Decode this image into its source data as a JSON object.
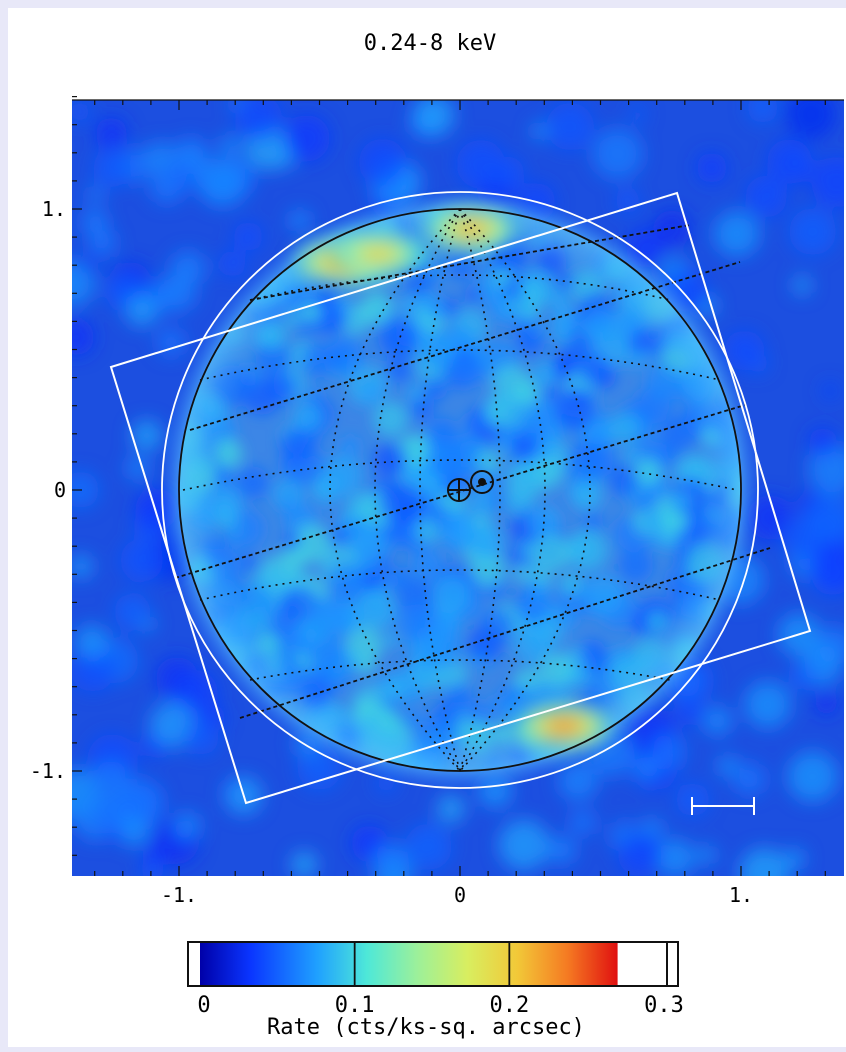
{
  "chart_data": {
    "type": "heatmap",
    "title": "0.24-8 keV",
    "xlabel": "",
    "ylabel": "",
    "xlim": [
      -1.4,
      1.36
    ],
    "ylim": [
      -1.37,
      1.41
    ],
    "x_ticks": [
      {
        "v": -1,
        "label": "-1."
      },
      {
        "v": 0,
        "label": "0"
      },
      {
        "v": 1,
        "label": "1."
      }
    ],
    "y_ticks": [
      {
        "v": 1,
        "label": "1."
      },
      {
        "v": 0,
        "label": "0"
      },
      {
        "v": -1,
        "label": "-1."
      }
    ],
    "colormap": "jet",
    "background_color": "#1c4fe0",
    "disk": {
      "center": [
        0,
        0
      ],
      "radius": 0.985
    },
    "bright_regions": [
      {
        "center": [
          -0.42,
          0.81
        ],
        "rate": 0.25
      },
      {
        "center": [
          -0.29,
          0.84
        ],
        "rate": 0.22
      },
      {
        "center": [
          0.04,
          0.93
        ],
        "rate": 0.24
      },
      {
        "center": [
          0.37,
          -0.84
        ],
        "rate": 0.26
      }
    ],
    "colorbar": {
      "label": "Rate (cts/ks-sq. arcsec)",
      "range": [
        0,
        0.3
      ],
      "ticks": [
        {
          "v": 0,
          "label": "0"
        },
        {
          "v": 0.1,
          "label": "0.1"
        },
        {
          "v": 0.2,
          "label": "0.2"
        },
        {
          "v": 0.3,
          "label": "0.3"
        }
      ],
      "max_color_value": 0.27
    }
  }
}
